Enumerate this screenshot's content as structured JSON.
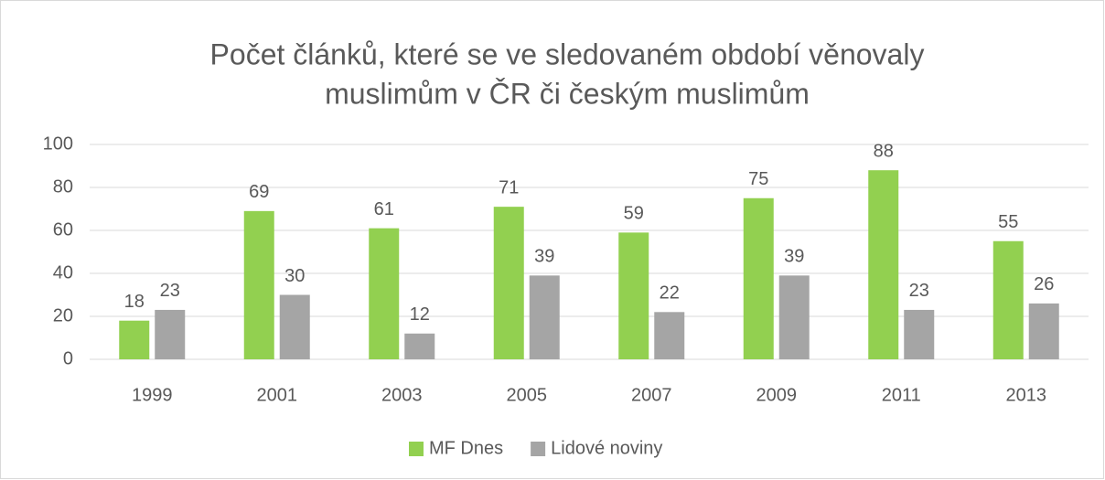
{
  "chart_data": {
    "type": "bar",
    "title": [
      "Počet článků, které se ve sledovaném období věnovaly",
      "muslimům v ČR či českým muslimům"
    ],
    "categories": [
      "1999",
      "2001",
      "2003",
      "2005",
      "2007",
      "2009",
      "2011",
      "2013"
    ],
    "series": [
      {
        "name": "MF Dnes",
        "color": "#92d050",
        "values": [
          18,
          69,
          61,
          71,
          59,
          75,
          88,
          55
        ]
      },
      {
        "name": "Lidové noviny",
        "color": "#a5a5a5",
        "values": [
          23,
          30,
          12,
          39,
          22,
          39,
          23,
          26
        ]
      }
    ],
    "ylim": [
      0,
      100
    ],
    "yticks": [
      0,
      20,
      40,
      60,
      80,
      100
    ],
    "grid": true,
    "legend": "bottom"
  }
}
